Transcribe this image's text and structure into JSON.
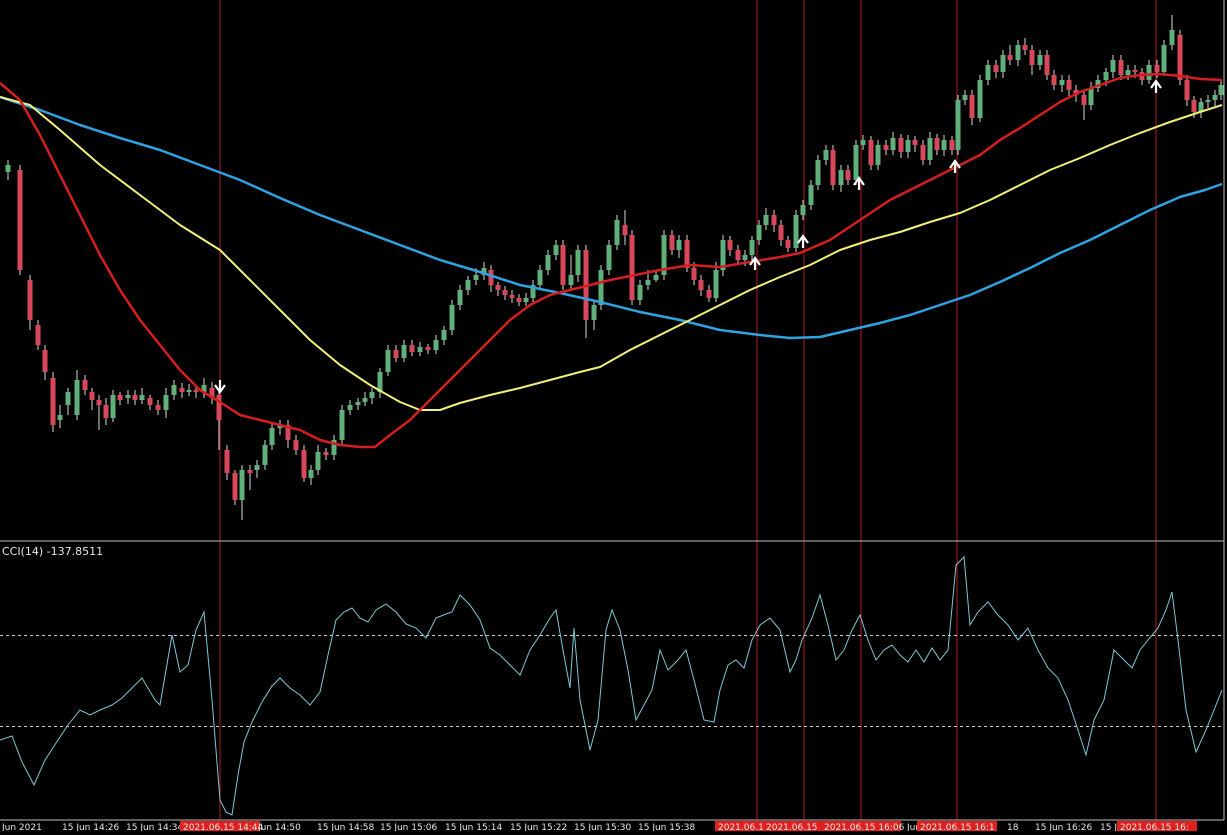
{
  "indicator": {
    "label": "CCI(14) -137.8511"
  },
  "time_axis": {
    "labels": [
      "Jun 2021",
      "15 Jun 14:26",
      "15 Jun 14:34",
      "2021.06.15 14:44",
      "Jun 14:50",
      "15 Jun 14:58",
      "15 Jun 15:06",
      "15 Jun 15:14",
      "15 Jun 15:22",
      "15 Jun 15:30",
      "15 Jun 15:38",
      "2021.06.1",
      "2021.06.15",
      "2021.06.15 16:06",
      "Jun",
      "2021.06.15 16:1",
      "18",
      "15 Jun 16:26",
      "15 Jun 1",
      "2021.06.15 16:"
    ],
    "highlighted": [
      3,
      11,
      12,
      13,
      15,
      19
    ]
  },
  "colors": {
    "background": "#000000",
    "bull_candle": "#5fb07a",
    "bear_candle": "#d9475a",
    "ma_fast": "#d41f1f",
    "ma_mid": "#f2ef7a",
    "ma_slow": "#2fa3e0",
    "cci_line": "#7fc9d4",
    "signal_line": "#b01e1e",
    "level_line": "#cfcfcf",
    "axis_highlight": "#e0201f"
  },
  "chart_data": [
    {
      "type": "candlestick",
      "title": "",
      "ma_fast": [
        [
          0,
          83
        ],
        [
          20,
          100
        ],
        [
          40,
          135
        ],
        [
          60,
          175
        ],
        [
          80,
          215
        ],
        [
          100,
          255
        ],
        [
          120,
          290
        ],
        [
          140,
          320
        ],
        [
          160,
          345
        ],
        [
          180,
          370
        ],
        [
          200,
          390
        ],
        [
          220,
          402
        ],
        [
          240,
          415
        ],
        [
          260,
          420
        ],
        [
          280,
          425
        ],
        [
          300,
          430
        ],
        [
          320,
          440
        ],
        [
          340,
          445
        ],
        [
          360,
          447
        ],
        [
          375,
          447
        ],
        [
          390,
          435
        ],
        [
          410,
          420
        ],
        [
          430,
          400
        ],
        [
          450,
          380
        ],
        [
          470,
          360
        ],
        [
          490,
          340
        ],
        [
          510,
          320
        ],
        [
          530,
          305
        ],
        [
          550,
          295
        ],
        [
          570,
          290
        ],
        [
          590,
          285
        ],
        [
          610,
          280
        ],
        [
          630,
          276
        ],
        [
          660,
          270
        ],
        [
          690,
          265
        ],
        [
          720,
          267
        ],
        [
          750,
          262
        ],
        [
          780,
          257
        ],
        [
          800,
          253
        ],
        [
          830,
          240
        ],
        [
          860,
          220
        ],
        [
          890,
          200
        ],
        [
          920,
          185
        ],
        [
          950,
          170
        ],
        [
          980,
          155
        ],
        [
          1000,
          140
        ],
        [
          1020,
          128
        ],
        [
          1040,
          115
        ],
        [
          1060,
          102
        ],
        [
          1080,
          92
        ],
        [
          1100,
          85
        ],
        [
          1120,
          78
        ],
        [
          1140,
          75
        ],
        [
          1160,
          74
        ],
        [
          1180,
          76
        ],
        [
          1200,
          79
        ],
        [
          1222,
          80
        ]
      ],
      "ma_mid": [
        [
          0,
          97
        ],
        [
          30,
          105
        ],
        [
          60,
          130
        ],
        [
          100,
          165
        ],
        [
          140,
          195
        ],
        [
          180,
          225
        ],
        [
          220,
          250
        ],
        [
          250,
          280
        ],
        [
          280,
          310
        ],
        [
          310,
          340
        ],
        [
          340,
          365
        ],
        [
          370,
          385
        ],
        [
          400,
          402
        ],
        [
          420,
          410
        ],
        [
          440,
          410
        ],
        [
          460,
          403
        ],
        [
          490,
          395
        ],
        [
          520,
          388
        ],
        [
          550,
          380
        ],
        [
          580,
          372
        ],
        [
          600,
          367
        ],
        [
          630,
          350
        ],
        [
          660,
          335
        ],
        [
          690,
          320
        ],
        [
          720,
          305
        ],
        [
          750,
          290
        ],
        [
          780,
          277
        ],
        [
          810,
          265
        ],
        [
          840,
          250
        ],
        [
          870,
          240
        ],
        [
          900,
          232
        ],
        [
          930,
          222
        ],
        [
          960,
          213
        ],
        [
          990,
          200
        ],
        [
          1020,
          185
        ],
        [
          1050,
          170
        ],
        [
          1080,
          158
        ],
        [
          1110,
          145
        ],
        [
          1140,
          133
        ],
        [
          1170,
          122
        ],
        [
          1200,
          112
        ],
        [
          1222,
          105
        ]
      ],
      "ma_slow": [
        [
          0,
          97
        ],
        [
          40,
          110
        ],
        [
          80,
          125
        ],
        [
          120,
          138
        ],
        [
          160,
          150
        ],
        [
          200,
          165
        ],
        [
          240,
          180
        ],
        [
          280,
          198
        ],
        [
          320,
          215
        ],
        [
          360,
          230
        ],
        [
          400,
          245
        ],
        [
          440,
          260
        ],
        [
          480,
          272
        ],
        [
          520,
          285
        ],
        [
          560,
          293
        ],
        [
          600,
          302
        ],
        [
          640,
          312
        ],
        [
          680,
          320
        ],
        [
          720,
          330
        ],
        [
          760,
          335
        ],
        [
          790,
          338
        ],
        [
          820,
          337
        ],
        [
          850,
          330
        ],
        [
          880,
          323
        ],
        [
          910,
          315
        ],
        [
          940,
          305
        ],
        [
          970,
          295
        ],
        [
          1000,
          282
        ],
        [
          1030,
          268
        ],
        [
          1060,
          253
        ],
        [
          1090,
          240
        ],
        [
          1120,
          225
        ],
        [
          1150,
          210
        ],
        [
          1180,
          197
        ],
        [
          1205,
          190
        ],
        [
          1222,
          184
        ]
      ]
    },
    {
      "type": "line",
      "title": "CCI(14) -137.8511",
      "levels": [
        100,
        -100
      ],
      "ylim": [
        -300,
        300
      ]
    }
  ]
}
